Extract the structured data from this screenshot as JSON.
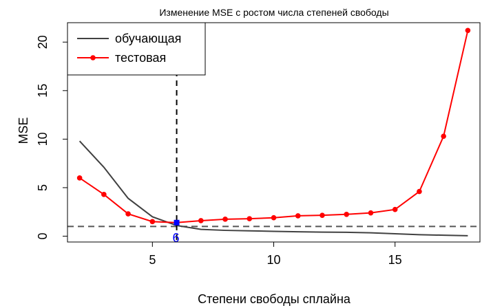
{
  "chart_data": {
    "type": "line",
    "title": "Изменение MSE с ростом числа степеней свободы",
    "xlabel": "Степени свободы сплайна",
    "ylabel": "MSE",
    "xlim": [
      1.5,
      18.5
    ],
    "ylim": [
      -0.6,
      22
    ],
    "x_ticks": [
      5,
      10,
      15
    ],
    "y_ticks": [
      0,
      5,
      10,
      15,
      20
    ],
    "x": [
      2,
      3,
      4,
      5,
      6,
      7,
      8,
      9,
      10,
      11,
      12,
      13,
      14,
      15,
      16,
      17,
      18
    ],
    "series": [
      {
        "name": "обучающая",
        "color": "#404040",
        "marker": "none",
        "values": [
          9.8,
          7.1,
          3.9,
          2.0,
          1.1,
          0.7,
          0.6,
          0.55,
          0.5,
          0.45,
          0.42,
          0.4,
          0.35,
          0.25,
          0.15,
          0.1,
          0.05
        ]
      },
      {
        "name": "тестовая",
        "color": "#ff0000",
        "marker": "circle",
        "values": [
          6.0,
          4.3,
          2.3,
          1.5,
          1.4,
          1.6,
          1.75,
          1.8,
          1.9,
          2.1,
          2.15,
          2.25,
          2.4,
          2.75,
          4.6,
          10.3,
          21.2
        ]
      }
    ],
    "vline": {
      "x": 6,
      "color": "#000000",
      "style": "dashed"
    },
    "hline": {
      "y": 1.0,
      "color": "#555555",
      "style": "dashed"
    },
    "min_point": {
      "x": 6,
      "y": 1.4,
      "label": "6",
      "color": "#0000ff"
    },
    "legend": "top-left",
    "grid": false
  }
}
